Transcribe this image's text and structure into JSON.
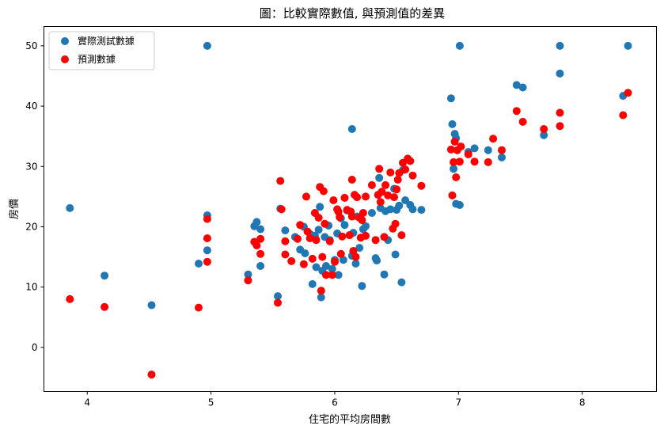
{
  "chart_data": {
    "type": "scatter",
    "title": "圖：比較實際數值, 與預測值的差異",
    "xlabel": "住宅的平均房間數",
    "ylabel": "房價",
    "xlim": [
      3.65,
      8.6
    ],
    "ylim": [
      -7.3,
      53.2
    ],
    "xticks": [
      "4",
      "5",
      "6",
      "7",
      "8"
    ],
    "yticks": [
      "0",
      "10",
      "20",
      "30",
      "40",
      "50"
    ],
    "grid": false,
    "legend_position": "top-left",
    "colors": {
      "actual": "#1f77b4",
      "predicted": "#ff0000"
    },
    "series": [
      {
        "name": "實際測試數據",
        "points": [
          [
            3.86,
            23.1
          ],
          [
            4.14,
            11.9
          ],
          [
            4.52,
            7.0
          ],
          [
            4.9,
            13.9
          ],
          [
            4.97,
            50.0
          ],
          [
            4.97,
            21.9
          ],
          [
            4.97,
            16.1
          ],
          [
            5.3,
            12.1
          ],
          [
            5.35,
            20.1
          ],
          [
            5.37,
            20.8
          ],
          [
            5.4,
            19.6
          ],
          [
            5.4,
            13.5
          ],
          [
            5.54,
            8.5
          ],
          [
            5.56,
            23.0
          ],
          [
            5.6,
            19.4
          ],
          [
            5.68,
            18.3
          ],
          [
            5.72,
            16.2
          ],
          [
            5.75,
            20.0
          ],
          [
            5.76,
            15.6
          ],
          [
            5.8,
            18.8
          ],
          [
            5.82,
            10.5
          ],
          [
            5.84,
            18.5
          ],
          [
            5.85,
            13.3
          ],
          [
            5.87,
            19.5
          ],
          [
            5.88,
            23.3
          ],
          [
            5.89,
            8.3
          ],
          [
            5.9,
            12.7
          ],
          [
            5.92,
            18.3
          ],
          [
            5.93,
            13.5
          ],
          [
            5.95,
            20.2
          ],
          [
            5.96,
            17.8
          ],
          [
            5.98,
            13.0
          ],
          [
            6.0,
            14.5
          ],
          [
            6.02,
            18.9
          ],
          [
            6.03,
            12.0
          ],
          [
            6.05,
            21.4
          ],
          [
            6.07,
            14.5
          ],
          [
            6.08,
            20.3
          ],
          [
            6.1,
            22.7
          ],
          [
            6.12,
            18.6
          ],
          [
            6.14,
            36.2
          ],
          [
            6.14,
            15.2
          ],
          [
            6.15,
            19.0
          ],
          [
            6.17,
            13.9
          ],
          [
            6.18,
            21.7
          ],
          [
            6.2,
            16.5
          ],
          [
            6.22,
            10.2
          ],
          [
            6.23,
            19.6
          ],
          [
            6.25,
            20.1
          ],
          [
            6.3,
            22.3
          ],
          [
            6.33,
            14.8
          ],
          [
            6.34,
            14.4
          ],
          [
            6.36,
            28.1
          ],
          [
            6.37,
            23.1
          ],
          [
            6.4,
            12.1
          ],
          [
            6.41,
            22.6
          ],
          [
            6.43,
            17.8
          ],
          [
            6.45,
            22.9
          ],
          [
            6.48,
            26.3
          ],
          [
            6.49,
            15.4
          ],
          [
            6.5,
            22.8
          ],
          [
            6.52,
            23.5
          ],
          [
            6.54,
            10.8
          ],
          [
            6.55,
            29.4
          ],
          [
            6.57,
            24.4
          ],
          [
            6.61,
            23.6
          ],
          [
            6.63,
            22.9
          ],
          [
            6.7,
            22.8
          ],
          [
            6.94,
            41.3
          ],
          [
            6.95,
            37.0
          ],
          [
            6.96,
            29.6
          ],
          [
            6.97,
            35.4
          ],
          [
            6.98,
            34.7
          ],
          [
            6.98,
            23.8
          ],
          [
            7.01,
            23.6
          ],
          [
            7.01,
            50.0
          ],
          [
            7.08,
            32.4
          ],
          [
            7.13,
            33.0
          ],
          [
            7.24,
            32.7
          ],
          [
            7.35,
            31.5
          ],
          [
            7.47,
            43.5
          ],
          [
            7.52,
            43.1
          ],
          [
            7.69,
            35.2
          ],
          [
            7.82,
            50.0
          ],
          [
            7.82,
            45.4
          ],
          [
            8.33,
            41.7
          ],
          [
            8.37,
            50.0
          ]
        ]
      },
      {
        "name": "預測數據",
        "points": [
          [
            3.86,
            8.0
          ],
          [
            4.14,
            6.7
          ],
          [
            4.52,
            -4.5
          ],
          [
            4.9,
            6.6
          ],
          [
            4.97,
            21.3
          ],
          [
            4.97,
            18.1
          ],
          [
            4.97,
            14.2
          ],
          [
            5.3,
            11.1
          ],
          [
            5.35,
            17.5
          ],
          [
            5.37,
            16.9
          ],
          [
            5.4,
            18.0
          ],
          [
            5.4,
            15.5
          ],
          [
            5.54,
            7.4
          ],
          [
            5.56,
            27.6
          ],
          [
            5.57,
            22.9
          ],
          [
            5.6,
            17.6
          ],
          [
            5.6,
            15.4
          ],
          [
            5.65,
            14.3
          ],
          [
            5.7,
            18.0
          ],
          [
            5.72,
            20.3
          ],
          [
            5.75,
            13.8
          ],
          [
            5.77,
            25.0
          ],
          [
            5.78,
            19.2
          ],
          [
            5.8,
            18.1
          ],
          [
            5.82,
            14.7
          ],
          [
            5.84,
            22.3
          ],
          [
            5.85,
            17.8
          ],
          [
            5.87,
            21.5
          ],
          [
            5.88,
            26.6
          ],
          [
            5.89,
            9.4
          ],
          [
            5.9,
            15.0
          ],
          [
            5.91,
            25.9
          ],
          [
            5.92,
            20.5
          ],
          [
            5.93,
            12.0
          ],
          [
            5.96,
            17.6
          ],
          [
            5.98,
            12.0
          ],
          [
            5.99,
            24.4
          ],
          [
            6.0,
            14.2
          ],
          [
            6.02,
            22.9
          ],
          [
            6.03,
            22.5
          ],
          [
            6.04,
            21.6
          ],
          [
            6.05,
            15.5
          ],
          [
            6.06,
            18.4
          ],
          [
            6.08,
            24.8
          ],
          [
            6.1,
            22.8
          ],
          [
            6.12,
            18.6
          ],
          [
            6.13,
            22.5
          ],
          [
            6.14,
            27.8
          ],
          [
            6.14,
            21.7
          ],
          [
            6.15,
            16.0
          ],
          [
            6.16,
            25.3
          ],
          [
            6.17,
            15.0
          ],
          [
            6.18,
            24.9
          ],
          [
            6.2,
            21.5
          ],
          [
            6.21,
            18.2
          ],
          [
            6.22,
            21.1
          ],
          [
            6.23,
            22.3
          ],
          [
            6.25,
            18.5
          ],
          [
            6.25,
            25.0
          ],
          [
            6.3,
            26.9
          ],
          [
            6.33,
            17.8
          ],
          [
            6.35,
            25.3
          ],
          [
            6.36,
            29.6
          ],
          [
            6.37,
            24.1
          ],
          [
            6.38,
            25.8
          ],
          [
            6.4,
            18.3
          ],
          [
            6.41,
            26.9
          ],
          [
            6.43,
            25.2
          ],
          [
            6.45,
            29.0
          ],
          [
            6.47,
            19.7
          ],
          [
            6.48,
            24.9
          ],
          [
            6.49,
            20.5
          ],
          [
            6.5,
            26.2
          ],
          [
            6.51,
            27.8
          ],
          [
            6.52,
            28.9
          ],
          [
            6.54,
            18.6
          ],
          [
            6.55,
            30.6
          ],
          [
            6.57,
            29.5
          ],
          [
            6.59,
            31.3
          ],
          [
            6.61,
            30.9
          ],
          [
            6.63,
            28.5
          ],
          [
            6.7,
            26.8
          ],
          [
            6.94,
            32.8
          ],
          [
            6.95,
            25.2
          ],
          [
            6.96,
            30.7
          ],
          [
            6.97,
            34.1
          ],
          [
            6.98,
            28.2
          ],
          [
            6.99,
            32.7
          ],
          [
            7.01,
            30.8
          ],
          [
            7.02,
            33.3
          ],
          [
            7.08,
            32.0
          ],
          [
            7.13,
            30.8
          ],
          [
            7.24,
            30.7
          ],
          [
            7.28,
            34.6
          ],
          [
            7.35,
            32.7
          ],
          [
            7.47,
            39.2
          ],
          [
            7.52,
            37.4
          ],
          [
            7.69,
            36.2
          ],
          [
            7.82,
            38.9
          ],
          [
            7.82,
            36.7
          ],
          [
            8.33,
            38.5
          ],
          [
            8.37,
            42.2
          ]
        ]
      }
    ]
  }
}
